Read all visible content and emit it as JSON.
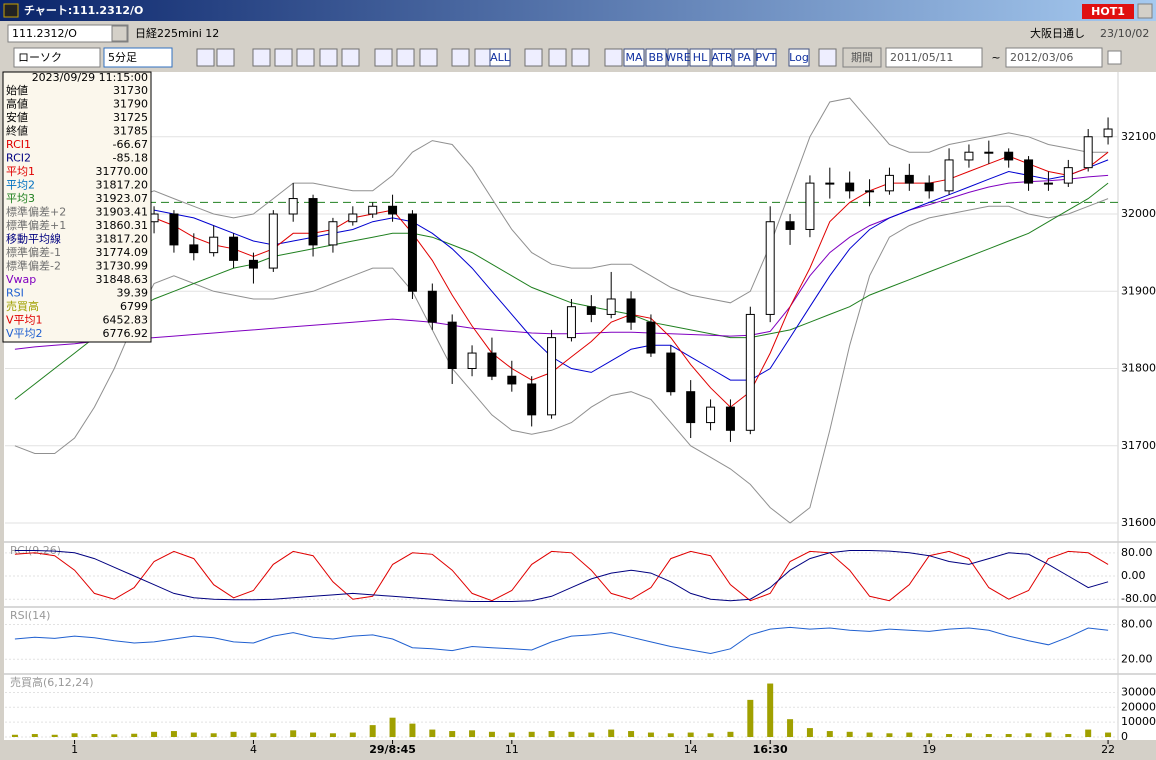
{
  "window": {
    "title": "チャート:111.2312/O",
    "hot": "HOT1"
  },
  "header": {
    "symbol": "111.2312/O",
    "name": "日経225mini 12",
    "market": "大阪日通し",
    "date": "23/10/02"
  },
  "toolbar": {
    "chart_kind": "ローソク",
    "interval": "5分足",
    "buttons": [
      "ALL",
      "MA",
      "BB",
      "WRE",
      "HL",
      "ATR",
      "PA",
      "PVT",
      "Log"
    ],
    "period_button": "期間",
    "from": "2011/05/11",
    "separator": "~",
    "to": "2012/03/06"
  },
  "info_panel": {
    "datetime": "2023/09/29  11:15:00",
    "rows": [
      {
        "label": "始値",
        "value": "31730",
        "color": "#000000"
      },
      {
        "label": "高値",
        "value": "31790",
        "color": "#000000"
      },
      {
        "label": "安値",
        "value": "31725",
        "color": "#000000"
      },
      {
        "label": "終値",
        "value": "31785",
        "color": "#000000"
      },
      {
        "label": "RCI1",
        "value": "-66.67",
        "color": "#e00000"
      },
      {
        "label": "RCI2",
        "value": "-85.18",
        "color": "#000080"
      },
      {
        "label": "平均1",
        "value": "31770.00",
        "color": "#e00000"
      },
      {
        "label": "平均2",
        "value": "31817.20",
        "color": "#0070c0"
      },
      {
        "label": "平均3",
        "value": "31923.07",
        "color": "#208020"
      },
      {
        "label": "標準偏差+2",
        "value": "31903.41",
        "color": "#707070"
      },
      {
        "label": "標準偏差+1",
        "value": "31860.31",
        "color": "#707070"
      },
      {
        "label": "移動平均線",
        "value": "31817.20",
        "color": "#000080"
      },
      {
        "label": "標準偏差-1",
        "value": "31774.09",
        "color": "#707070"
      },
      {
        "label": "標準偏差-2",
        "value": "31730.99",
        "color": "#707070"
      },
      {
        "label": "Vwap",
        "value": "31848.63",
        "color": "#8000c0"
      },
      {
        "label": "RSI",
        "value": "39.39",
        "color": "#2060d0"
      },
      {
        "label": "売買高",
        "value": "6799",
        "color": "#a0a000"
      },
      {
        "label": "V平均1",
        "value": "6452.83",
        "color": "#e00000"
      },
      {
        "label": "V平均2",
        "value": "6776.92",
        "color": "#2060d0"
      }
    ]
  },
  "chart_data": [
    {
      "type": "candlestick",
      "ylim": [
        31578,
        32167
      ],
      "yticks": [
        31600,
        31700,
        31800,
        31900,
        32000,
        32100
      ],
      "grid": true,
      "categories": [
        null,
        null,
        null,
        "1",
        null,
        null,
        null,
        null,
        null,
        null,
        null,
        null,
        "4",
        null,
        null,
        null,
        null,
        null,
        null,
        "29/8:45",
        null,
        null,
        null,
        null,
        null,
        "11",
        null,
        null,
        null,
        null,
        null,
        null,
        null,
        null,
        "14",
        null,
        null,
        null,
        "16:30",
        null,
        null,
        null,
        null,
        null,
        null,
        null,
        "19",
        null,
        null,
        null,
        null,
        null,
        null,
        null,
        null,
        "22"
      ],
      "open": [
        null,
        null,
        null,
        null,
        null,
        null,
        null,
        31990,
        32000,
        31960,
        31950,
        31970,
        31940,
        31930,
        32000,
        32020,
        31960,
        31990,
        32000,
        32010,
        32000,
        31900,
        31860,
        31800,
        31820,
        31790,
        31780,
        31740,
        31840,
        31880,
        31870,
        31890,
        31860,
        31820,
        31770,
        31730,
        31750,
        31720,
        31870,
        31990,
        31980,
        32040,
        32040,
        32030,
        32030,
        32050,
        32040,
        32030,
        32070,
        32080,
        32080,
        32070,
        32040,
        32040,
        32060,
        32100
      ],
      "high": [
        null,
        null,
        null,
        null,
        null,
        null,
        null,
        32010,
        32005,
        31975,
        31985,
        31975,
        31950,
        32005,
        32040,
        32025,
        31995,
        32010,
        32015,
        32025,
        32005,
        31910,
        31870,
        31830,
        31840,
        31810,
        31790,
        31850,
        31890,
        31895,
        31925,
        31900,
        31870,
        31830,
        31785,
        31760,
        31760,
        31880,
        32010,
        32000,
        32050,
        32060,
        32055,
        32045,
        32060,
        32065,
        32050,
        32085,
        32090,
        32095,
        32085,
        32075,
        32055,
        32070,
        32110,
        32125
      ],
      "low": [
        null,
        null,
        null,
        null,
        null,
        null,
        null,
        31975,
        31950,
        31940,
        31945,
        31930,
        31910,
        31925,
        31990,
        31945,
        31950,
        31985,
        31995,
        31990,
        31890,
        31850,
        31780,
        31790,
        31785,
        31770,
        31725,
        31735,
        31835,
        31860,
        31865,
        31850,
        31815,
        31765,
        31710,
        31720,
        31705,
        31715,
        31860,
        31960,
        31970,
        32020,
        32020,
        32010,
        32025,
        32030,
        32020,
        32025,
        32060,
        32065,
        32060,
        32030,
        32030,
        32035,
        32055,
        32090
      ],
      "close": [
        null,
        null,
        null,
        null,
        null,
        null,
        null,
        32000,
        31960,
        31950,
        31970,
        31940,
        31930,
        32000,
        32020,
        31960,
        31990,
        32000,
        32010,
        32000,
        31900,
        31860,
        31800,
        31820,
        31790,
        31780,
        31740,
        31840,
        31880,
        31870,
        31890,
        31860,
        31820,
        31770,
        31730,
        31750,
        31720,
        31870,
        31990,
        31980,
        32040,
        32040,
        32030,
        32030,
        32050,
        32040,
        32030,
        32070,
        32080,
        32080,
        32070,
        32040,
        32040,
        32060,
        32100,
        32110
      ],
      "reference_line": {
        "value": 32015,
        "color": "#208020"
      },
      "series": [
        {
          "color": "#909090",
          "values": [
            31900,
            31920,
            31950,
            31980,
            32000,
            32010,
            32020,
            32030,
            32020,
            32010,
            32000,
            31995,
            32000,
            32020,
            32040,
            32040,
            32035,
            32030,
            32030,
            32050,
            32080,
            32095,
            32090,
            32060,
            32020,
            31980,
            31950,
            31935,
            31930,
            31930,
            31935,
            31935,
            31920,
            31905,
            31895,
            31890,
            31885,
            31900,
            31960,
            32030,
            32100,
            32145,
            32150,
            32120,
            32090,
            32080,
            32080,
            32090,
            32095,
            32100,
            32105,
            32100,
            32090,
            32085,
            32080,
            32080
          ]
        },
        {
          "color": "#909090",
          "values": [
            31700,
            31690,
            31690,
            31710,
            31750,
            31800,
            31860,
            31910,
            31920,
            31910,
            31900,
            31895,
            31890,
            31890,
            31895,
            31900,
            31910,
            31920,
            31930,
            31930,
            31900,
            31850,
            31800,
            31770,
            31740,
            31720,
            31715,
            31720,
            31730,
            31750,
            31765,
            31770,
            31760,
            31730,
            31700,
            31685,
            31670,
            31650,
            31620,
            31600,
            31620,
            31720,
            31830,
            31920,
            31970,
            31985,
            31995,
            32000,
            32005,
            32010,
            32010,
            32000,
            31995,
            32000,
            32010,
            32020
          ]
        },
        {
          "color": "#208020",
          "values": [
            31760,
            31780,
            31800,
            31820,
            31840,
            31860,
            31875,
            31890,
            31900,
            31910,
            31920,
            31930,
            31935,
            31945,
            31950,
            31955,
            31960,
            31965,
            31970,
            31975,
            31975,
            31970,
            31960,
            31950,
            31935,
            31920,
            31905,
            31895,
            31885,
            31880,
            31875,
            31870,
            31860,
            31855,
            31850,
            31845,
            31840,
            31840,
            31845,
            31850,
            31860,
            31870,
            31880,
            31895,
            31905,
            31915,
            31925,
            31935,
            31945,
            31955,
            31965,
            31975,
            31990,
            32005,
            32020,
            32040
          ]
        },
        {
          "color": "#8000c0",
          "values": [
            31825,
            31828,
            31830,
            31832,
            31835,
            31837,
            31838,
            31840,
            31842,
            31844,
            31846,
            31848,
            31850,
            31852,
            31854,
            31856,
            31858,
            31860,
            31862,
            31864,
            31862,
            31860,
            31856,
            31852,
            31850,
            31848,
            31846,
            31845,
            31845,
            31846,
            31847,
            31847,
            31846,
            31845,
            31844,
            31843,
            31842,
            31843,
            31848,
            31880,
            31920,
            31950,
            31970,
            31985,
            31995,
            32005,
            32012,
            32020,
            32028,
            32035,
            32040,
            32042,
            32043,
            32045,
            32048,
            32050
          ]
        },
        {
          "color": "#0000d0",
          "values": [
            null,
            null,
            null,
            null,
            null,
            null,
            null,
            32005,
            32000,
            31995,
            31985,
            31975,
            31965,
            31960,
            31965,
            31970,
            31975,
            31980,
            31990,
            31995,
            31990,
            31975,
            31955,
            31930,
            31900,
            31870,
            31840,
            31815,
            31800,
            31795,
            31810,
            31825,
            31830,
            31830,
            31815,
            31800,
            31785,
            31785,
            31800,
            31840,
            31880,
            31920,
            31955,
            31980,
            31995,
            32005,
            32015,
            32025,
            32035,
            32045,
            32055,
            32050,
            32045,
            32050,
            32060,
            32070
          ]
        },
        {
          "color": "#e00000",
          "values": [
            null,
            null,
            null,
            null,
            null,
            null,
            null,
            31995,
            31985,
            31970,
            31960,
            31955,
            31945,
            31955,
            31975,
            31975,
            31980,
            31995,
            32000,
            32005,
            31975,
            31940,
            31895,
            31855,
            31820,
            31800,
            31785,
            31795,
            31815,
            31835,
            31860,
            31870,
            31865,
            31840,
            31805,
            31775,
            31750,
            31770,
            31820,
            31880,
            31930,
            31990,
            32015,
            32030,
            32040,
            32040,
            32040,
            32045,
            32055,
            32065,
            32075,
            32065,
            32055,
            32050,
            32060,
            32080
          ]
        }
      ]
    },
    {
      "type": "line",
      "title": "RCI(9,26)",
      "ylim": [
        -100,
        107
      ],
      "yticks": [
        {
          "value": 80,
          "label": "80.00"
        },
        {
          "value": 0,
          "label": "0.00"
        },
        {
          "value": -80,
          "label": "-80.00"
        }
      ],
      "grid": true,
      "series": [
        {
          "color": "#e00000",
          "values": [
            75,
            80,
            70,
            20,
            -60,
            -80,
            -40,
            50,
            85,
            60,
            -30,
            -75,
            -50,
            40,
            85,
            70,
            -20,
            -80,
            -70,
            40,
            80,
            75,
            20,
            -60,
            -85,
            -50,
            40,
            85,
            80,
            20,
            -60,
            -80,
            -40,
            60,
            85,
            70,
            -30,
            -85,
            -60,
            50,
            85,
            80,
            20,
            -70,
            -85,
            -30,
            70,
            85,
            60,
            -40,
            -80,
            -50,
            60,
            85,
            80,
            40
          ]
        },
        {
          "color": "#000080",
          "values": [
            88,
            88,
            86,
            80,
            60,
            30,
            0,
            -30,
            -60,
            -75,
            -80,
            -82,
            -82,
            -80,
            -75,
            -70,
            -65,
            -60,
            -65,
            -70,
            -75,
            -80,
            -85,
            -88,
            -88,
            -88,
            -85,
            -70,
            -40,
            -10,
            10,
            20,
            10,
            -20,
            -60,
            -80,
            -85,
            -80,
            -40,
            20,
            60,
            80,
            88,
            88,
            86,
            80,
            70,
            50,
            40,
            60,
            80,
            75,
            40,
            0,
            -40,
            -20
          ]
        }
      ]
    },
    {
      "type": "line",
      "title": "RSI(14)",
      "ylim": [
        -2,
        105
      ],
      "yticks": [
        {
          "value": 80,
          "label": "80.00"
        },
        {
          "value": 20,
          "label": "20.00"
        }
      ],
      "grid": true,
      "series": [
        {
          "color": "#2060d0",
          "values": [
            55,
            58,
            56,
            60,
            57,
            52,
            48,
            50,
            55,
            60,
            57,
            50,
            48,
            60,
            66,
            58,
            55,
            60,
            62,
            55,
            40,
            38,
            35,
            42,
            40,
            38,
            36,
            50,
            60,
            62,
            66,
            58,
            50,
            42,
            36,
            30,
            38,
            62,
            72,
            75,
            72,
            74,
            70,
            68,
            72,
            70,
            68,
            72,
            74,
            70,
            60,
            52,
            45,
            58,
            74,
            70
          ]
        }
      ]
    },
    {
      "type": "bar",
      "title": "売買高(6,12,24)",
      "ylim": [
        0,
        40400
      ],
      "yticks": [
        0,
        10000,
        20000,
        30000
      ],
      "grid": true,
      "color": "#a0a000",
      "values": [
        1500,
        2000,
        1500,
        2500,
        2000,
        1800,
        2200,
        3500,
        4000,
        3000,
        2500,
        3500,
        3000,
        2500,
        4500,
        3000,
        2500,
        3000,
        8000,
        13000,
        9000,
        5000,
        4000,
        4500,
        3500,
        3000,
        3500,
        4000,
        3500,
        3000,
        5000,
        4000,
        3000,
        2500,
        3000,
        2500,
        3500,
        25000,
        36000,
        12000,
        6000,
        4000,
        3500,
        3000,
        2500,
        3000,
        2500,
        2000,
        2500,
        2000,
        2000,
        2500,
        3000,
        2000,
        5000,
        3000
      ]
    }
  ]
}
